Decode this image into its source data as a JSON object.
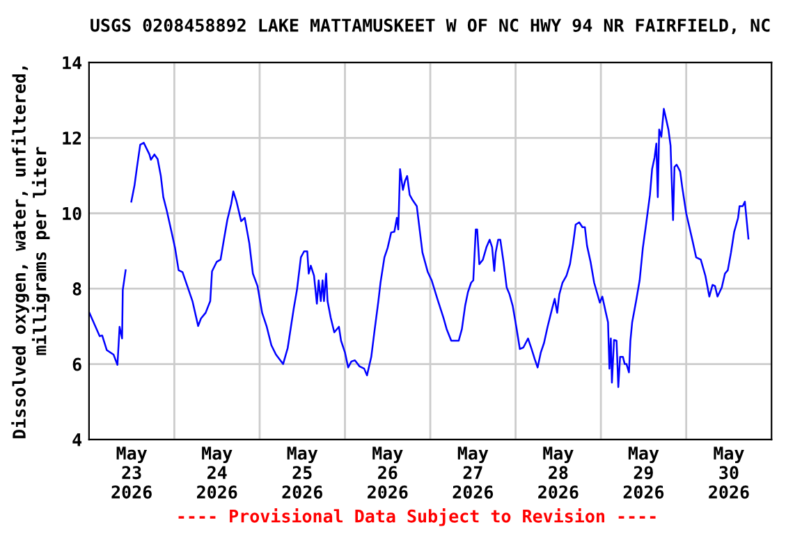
{
  "chart_data": {
    "type": "line",
    "title": "USGS 0208458892 LAKE MATTAMUSKEET W OF NC HWY 94 NR FAIRFIELD, NC",
    "ylabel": "Dissolved oxygen, water, unfiltered,\nmilligrams per liter",
    "annotations": [
      "---- Provisional Data Subject to Revision ----"
    ],
    "x": [
      "2026-05-23T00:06",
      "2026-05-23T01:00",
      "2026-05-23T03:00",
      "2026-05-23T03:42",
      "2026-05-23T05:00",
      "2026-05-23T06:54",
      "2026-05-23T08:00",
      "2026-05-23T08:36",
      "2026-05-23T09:18",
      "2026-05-23T09:30",
      "2026-05-23T10:18",
      "2026-05-23T11:06",
      "2026-05-23T11:54",
      "2026-05-23T12:48",
      "2026-05-23T13:30",
      "2026-05-23T14:24",
      "2026-05-23T15:24",
      "2026-05-23T17:00",
      "2026-05-23T17:24",
      "2026-05-23T18:24",
      "2026-05-23T19:18",
      "2026-05-23T20:12",
      "2026-05-23T20:54",
      "2026-05-23T21:54",
      "2026-05-23T23:12",
      "2026-05-24T00:12",
      "2026-05-24T01:12",
      "2026-05-24T02:18",
      "2026-05-24T03:48",
      "2026-05-24T05:06",
      "2026-05-24T06:42",
      "2026-05-24T07:30",
      "2026-05-24T08:48",
      "2026-05-24T10:06",
      "2026-05-24T10:36",
      "2026-05-24T11:54",
      "2026-05-24T13:00",
      "2026-05-24T14:00",
      "2026-05-24T14:54",
      "2026-05-24T16:00",
      "2026-05-24T16:36",
      "2026-05-24T17:30",
      "2026-05-24T18:48",
      "2026-05-24T19:48",
      "2026-05-24T21:06",
      "2026-05-24T22:06",
      "2026-05-24T23:24",
      "2026-05-25T00:42",
      "2026-05-25T02:00",
      "2026-05-25T03:18",
      "2026-05-25T04:36",
      "2026-05-25T06:36",
      "2026-05-25T07:54",
      "2026-05-25T08:48",
      "2026-05-25T09:36",
      "2026-05-25T10:30",
      "2026-05-25T11:36",
      "2026-05-25T12:30",
      "2026-05-25T13:24",
      "2026-05-25T13:48",
      "2026-05-25T14:24",
      "2026-05-25T15:18",
      "2026-05-25T16:06",
      "2026-05-25T16:36",
      "2026-05-25T17:12",
      "2026-05-25T17:42",
      "2026-05-25T18:06",
      "2026-05-25T18:42",
      "2026-05-25T19:06",
      "2026-05-25T20:00",
      "2026-05-25T21:00",
      "2026-05-25T22:18",
      "2026-05-25T22:54",
      "2026-05-26T00:00",
      "2026-05-26T00:54",
      "2026-05-26T01:48",
      "2026-05-26T02:48",
      "2026-05-26T04:06",
      "2026-05-26T05:24",
      "2026-05-26T06:12",
      "2026-05-26T07:24",
      "2026-05-26T08:18",
      "2026-05-26T09:24",
      "2026-05-26T10:00",
      "2026-05-26T11:06",
      "2026-05-26T12:00",
      "2026-05-26T13:00",
      "2026-05-26T13:54",
      "2026-05-26T14:36",
      "2026-05-26T15:00",
      "2026-05-26T15:30",
      "2026-05-26T16:18",
      "2026-05-26T16:54",
      "2026-05-26T17:30",
      "2026-05-26T18:12",
      "2026-05-26T18:54",
      "2026-05-26T20:12",
      "2026-05-26T21:48",
      "2026-05-26T23:18",
      "2026-05-27T00:24",
      "2026-05-27T02:00",
      "2026-05-27T03:42",
      "2026-05-27T04:36",
      "2026-05-27T05:54",
      "2026-05-27T08:00",
      "2026-05-27T08:54",
      "2026-05-27T09:48",
      "2026-05-27T10:36",
      "2026-05-27T11:30",
      "2026-05-27T12:06",
      "2026-05-27T12:48",
      "2026-05-27T13:12",
      "2026-05-27T13:48",
      "2026-05-27T14:48",
      "2026-05-27T15:48",
      "2026-05-27T16:42",
      "2026-05-27T17:24",
      "2026-05-27T18:00",
      "2026-05-27T18:24",
      "2026-05-27T19:06",
      "2026-05-27T19:42",
      "2026-05-27T20:36",
      "2026-05-27T21:30",
      "2026-05-27T22:18",
      "2026-05-27T23:12",
      "2026-05-28T00:12",
      "2026-05-28T01:12",
      "2026-05-28T02:12",
      "2026-05-28T03:30",
      "2026-05-28T04:30",
      "2026-05-28T05:24",
      "2026-05-28T06:12",
      "2026-05-28T07:06",
      "2026-05-28T08:00",
      "2026-05-28T09:00",
      "2026-05-28T10:18",
      "2026-05-28T11:00",
      "2026-05-28T11:42",
      "2026-05-28T12:18",
      "2026-05-28T13:12",
      "2026-05-28T14:18",
      "2026-05-28T15:18",
      "2026-05-28T16:12",
      "2026-05-28T16:54",
      "2026-05-28T17:54",
      "2026-05-28T18:48",
      "2026-05-28T19:30",
      "2026-05-28T20:06",
      "2026-05-28T21:06",
      "2026-05-28T22:06",
      "2026-05-28T23:42",
      "2026-05-29T00:24",
      "2026-05-29T01:24",
      "2026-05-29T02:00",
      "2026-05-29T02:24",
      "2026-05-29T02:48",
      "2026-05-29T03:06",
      "2026-05-29T03:42",
      "2026-05-29T04:24",
      "2026-05-29T04:54",
      "2026-05-29T05:24",
      "2026-05-29T06:12",
      "2026-05-29T06:42",
      "2026-05-29T07:12",
      "2026-05-29T07:54",
      "2026-05-29T08:18",
      "2026-05-29T08:48",
      "2026-05-29T09:54",
      "2026-05-29T10:54",
      "2026-05-29T11:48",
      "2026-05-29T12:42",
      "2026-05-29T13:48",
      "2026-05-29T14:24",
      "2026-05-29T15:06",
      "2026-05-29T15:36",
      "2026-05-29T16:00",
      "2026-05-29T16:24",
      "2026-05-29T17:00",
      "2026-05-29T17:42",
      "2026-05-29T18:18",
      "2026-05-29T19:00",
      "2026-05-29T19:36",
      "2026-05-29T20:18",
      "2026-05-29T20:42",
      "2026-05-29T21:18",
      "2026-05-29T22:18",
      "2026-05-29T22:54",
      "2026-05-30T00:00",
      "2026-05-30T00:54",
      "2026-05-30T01:48",
      "2026-05-30T02:48",
      "2026-05-30T04:06",
      "2026-05-30T05:24",
      "2026-05-30T06:30",
      "2026-05-30T07:24",
      "2026-05-30T08:06",
      "2026-05-30T08:48",
      "2026-05-30T10:00",
      "2026-05-30T10:54",
      "2026-05-30T11:42",
      "2026-05-30T12:36",
      "2026-05-30T13:30",
      "2026-05-30T14:36",
      "2026-05-30T15:00",
      "2026-05-30T15:54",
      "2026-05-30T16:30",
      "2026-05-30T17:00",
      "2026-05-30T17:30"
    ],
    "series": [
      {
        "color": "#0000ff",
        "values": [
          7.36,
          7.17,
          6.74,
          6.76,
          6.37,
          6.25,
          5.98,
          6.99,
          6.68,
          7.97,
          8.49,
          null,
          10.31,
          10.74,
          11.23,
          11.82,
          11.87,
          11.56,
          11.42,
          11.56,
          11.44,
          10.99,
          10.43,
          10.06,
          9.51,
          9.08,
          8.49,
          8.44,
          8.03,
          7.67,
          7.01,
          7.21,
          7.36,
          7.67,
          8.46,
          8.71,
          8.77,
          9.33,
          9.82,
          10.25,
          10.58,
          10.31,
          9.79,
          9.88,
          9.2,
          8.4,
          8.07,
          7.36,
          6.99,
          6.5,
          6.25,
          6.0,
          6.43,
          6.99,
          7.48,
          7.97,
          8.83,
          8.99,
          8.99,
          8.4,
          8.61,
          8.34,
          7.6,
          8.22,
          7.67,
          8.22,
          7.67,
          8.4,
          7.67,
          7.23,
          6.84,
          6.99,
          6.62,
          6.31,
          5.91,
          6.07,
          6.1,
          5.94,
          5.88,
          5.7,
          6.19,
          6.87,
          7.67,
          8.16,
          8.83,
          9.08,
          9.49,
          9.51,
          9.88,
          9.57,
          11.17,
          10.62,
          10.86,
          10.99,
          10.49,
          10.37,
          10.19,
          8.96,
          8.44,
          8.22,
          7.73,
          7.23,
          6.93,
          6.62,
          6.62,
          6.93,
          7.54,
          7.91,
          8.16,
          8.22,
          9.57,
          9.57,
          8.65,
          8.77,
          9.1,
          9.3,
          9.1,
          8.47,
          8.96,
          9.3,
          9.3,
          8.71,
          8.03,
          7.85,
          7.54,
          6.99,
          6.4,
          6.44,
          6.68,
          6.4,
          6.13,
          5.91,
          6.31,
          6.56,
          6.99,
          7.48,
          7.73,
          7.36,
          7.85,
          8.16,
          8.34,
          8.65,
          9.2,
          9.7,
          9.76,
          9.63,
          9.63,
          9.14,
          8.71,
          8.16,
          7.63,
          7.79,
          7.36,
          7.11,
          5.88,
          6.68,
          5.51,
          6.64,
          6.62,
          5.39,
          6.19,
          6.19,
          6.0,
          6.0,
          5.78,
          6.62,
          7.11,
          7.67,
          8.22,
          9.08,
          9.7,
          10.49,
          11.17,
          11.48,
          11.85,
          10.43,
          12.22,
          12.03,
          12.77,
          12.52,
          12.22,
          11.79,
          9.82,
          11.23,
          11.29,
          11.11,
          10.68,
          10.0,
          9.63,
          9.26,
          8.83,
          8.77,
          8.34,
          7.79,
          8.1,
          8.07,
          7.79,
          8.03,
          8.4,
          8.49,
          8.96,
          9.51,
          9.88,
          10.19,
          10.19,
          10.31,
          9.82,
          9.33
        ]
      }
    ],
    "xlim": [
      "2026-05-23",
      "2026-05-31"
    ],
    "xticks": [
      {
        "value": "2026-05-23T12:00",
        "label": "May\n23\n2026"
      },
      {
        "value": "2026-05-24",
        "label": null
      },
      {
        "value": "2026-05-24T12:00",
        "label": "May\n24\n2026"
      },
      {
        "value": "2026-05-25",
        "label": null
      },
      {
        "value": "2026-05-25T12:00",
        "label": "May\n25\n2026"
      },
      {
        "value": "2026-05-26",
        "label": null
      },
      {
        "value": "2026-05-26T12:00",
        "label": "May\n26\n2026"
      },
      {
        "value": "2026-05-27",
        "label": null
      },
      {
        "value": "2026-05-27T12:00",
        "label": "May\n27\n2026"
      },
      {
        "value": "2026-05-28",
        "label": null
      },
      {
        "value": "2026-05-28T12:00",
        "label": "May\n28\n2026"
      },
      {
        "value": "2026-05-29",
        "label": null
      },
      {
        "value": "2026-05-29T12:00",
        "label": "May\n29\n2026"
      },
      {
        "value": "2026-05-30",
        "label": null
      },
      {
        "value": "2026-05-30T12:00",
        "label": "May\n30\n2026"
      }
    ],
    "ylim": [
      4,
      14
    ],
    "yticks": [
      4,
      6,
      8,
      10,
      12,
      14
    ],
    "grid": true,
    "marker": "none",
    "line_style": "solid"
  }
}
